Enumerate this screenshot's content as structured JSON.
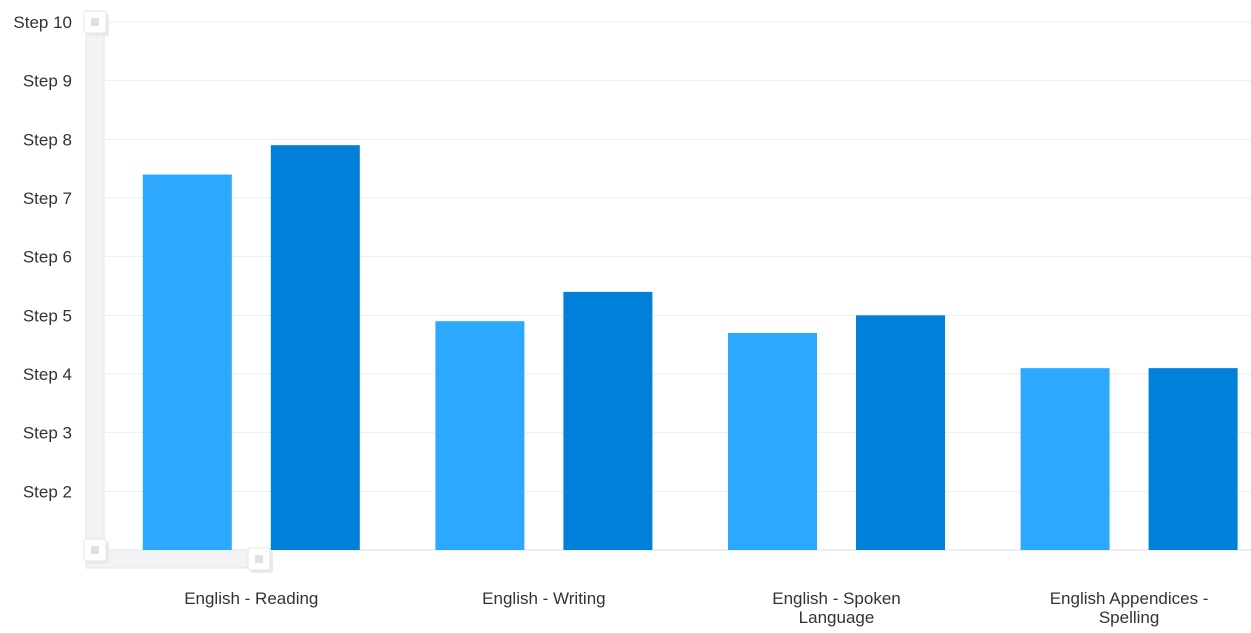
{
  "chart_data": {
    "type": "bar",
    "title": "",
    "xlabel": "",
    "ylabel": "",
    "categories": [
      [
        "English - Reading"
      ],
      [
        "English - Writing"
      ],
      [
        "English - Spoken",
        "Language"
      ],
      [
        "English Appendices -",
        "Spelling"
      ]
    ],
    "series": [
      {
        "values": [
          7.4,
          4.9,
          4.7,
          4.1
        ],
        "color": "#2CA8FF"
      },
      {
        "values": [
          7.9,
          5.4,
          5.0,
          4.1
        ],
        "color": "#0080D9"
      }
    ],
    "ylim": [
      1,
      10
    ],
    "yticks": [
      {
        "value": 2,
        "label": "Step 2"
      },
      {
        "value": 3,
        "label": "Step 3"
      },
      {
        "value": 4,
        "label": "Step 4"
      },
      {
        "value": 5,
        "label": "Step 5"
      },
      {
        "value": 6,
        "label": "Step 6"
      },
      {
        "value": 7,
        "label": "Step 7"
      },
      {
        "value": 8,
        "label": "Step 8"
      },
      {
        "value": 9,
        "label": "Step 9"
      },
      {
        "value": 10,
        "label": "Step 10"
      }
    ],
    "grid": true,
    "legend": "none",
    "colors": {
      "grid": "#EEEEEE",
      "axis": "#DDDDDD",
      "scrollbar_track": "#F2F3F5",
      "scrollbar_border": "#E4E5E8",
      "handle_fill": "#FFFFFF",
      "handle_dot": "#E0E0E0"
    }
  }
}
